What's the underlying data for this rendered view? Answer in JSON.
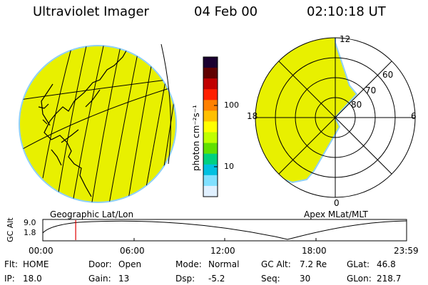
{
  "header": {
    "instrument": "Ultraviolet Imager",
    "date": "04 Feb 00",
    "time": "02:10:18 UT"
  },
  "colors": {
    "background": "#ffffff",
    "disk_fill": "#e8f000",
    "disk_edge": "#8fd0ff",
    "ink": "#000000",
    "marker": "#e00000"
  },
  "left_panel": {
    "caption": "Geographic Lat/Lon"
  },
  "right_panel": {
    "caption": "Apex MLat/MLT",
    "mlt_labels": [
      "12",
      "6",
      "0",
      "18"
    ],
    "lat_labels": [
      "60",
      "70",
      "80"
    ]
  },
  "colorbar": {
    "unit_label": "photon cm⁻²s⁻¹",
    "ticks": [
      "100",
      "10"
    ],
    "scale": "log",
    "colors_top_to_bottom": [
      "#1a0030",
      "#600000",
      "#c00000",
      "#ff2000",
      "#ff8000",
      "#ffc000",
      "#ffff00",
      "#c0ff00",
      "#60e000",
      "#00d080",
      "#00c0e0",
      "#80e0ff",
      "#e0f0ff"
    ]
  },
  "altitude_plot": {
    "ylabel": "GC Alt",
    "yticks": [
      "9.0",
      "1.8"
    ],
    "xticks": [
      "00:00",
      "06:00",
      "12:00",
      "18:00",
      "23:59"
    ],
    "current_time_hours": 2.17
  },
  "status": {
    "row1": [
      {
        "label": "Flt:",
        "value": "HOME"
      },
      {
        "label": "Door:",
        "value": "Open"
      },
      {
        "label": "Mode:",
        "value": "Normal"
      },
      {
        "label": "GC Alt:",
        "value": "7.2 Re"
      },
      {
        "label": "GLat:",
        "value": "46.8"
      }
    ],
    "row2": [
      {
        "label": "IP:",
        "value": "18.0"
      },
      {
        "label": "Gain:",
        "value": "13"
      },
      {
        "label": "Dsp:",
        "value": "-5.2"
      },
      {
        "label": "Seq:",
        "value": "30"
      },
      {
        "label": "GLon:",
        "value": "218.7"
      }
    ]
  }
}
